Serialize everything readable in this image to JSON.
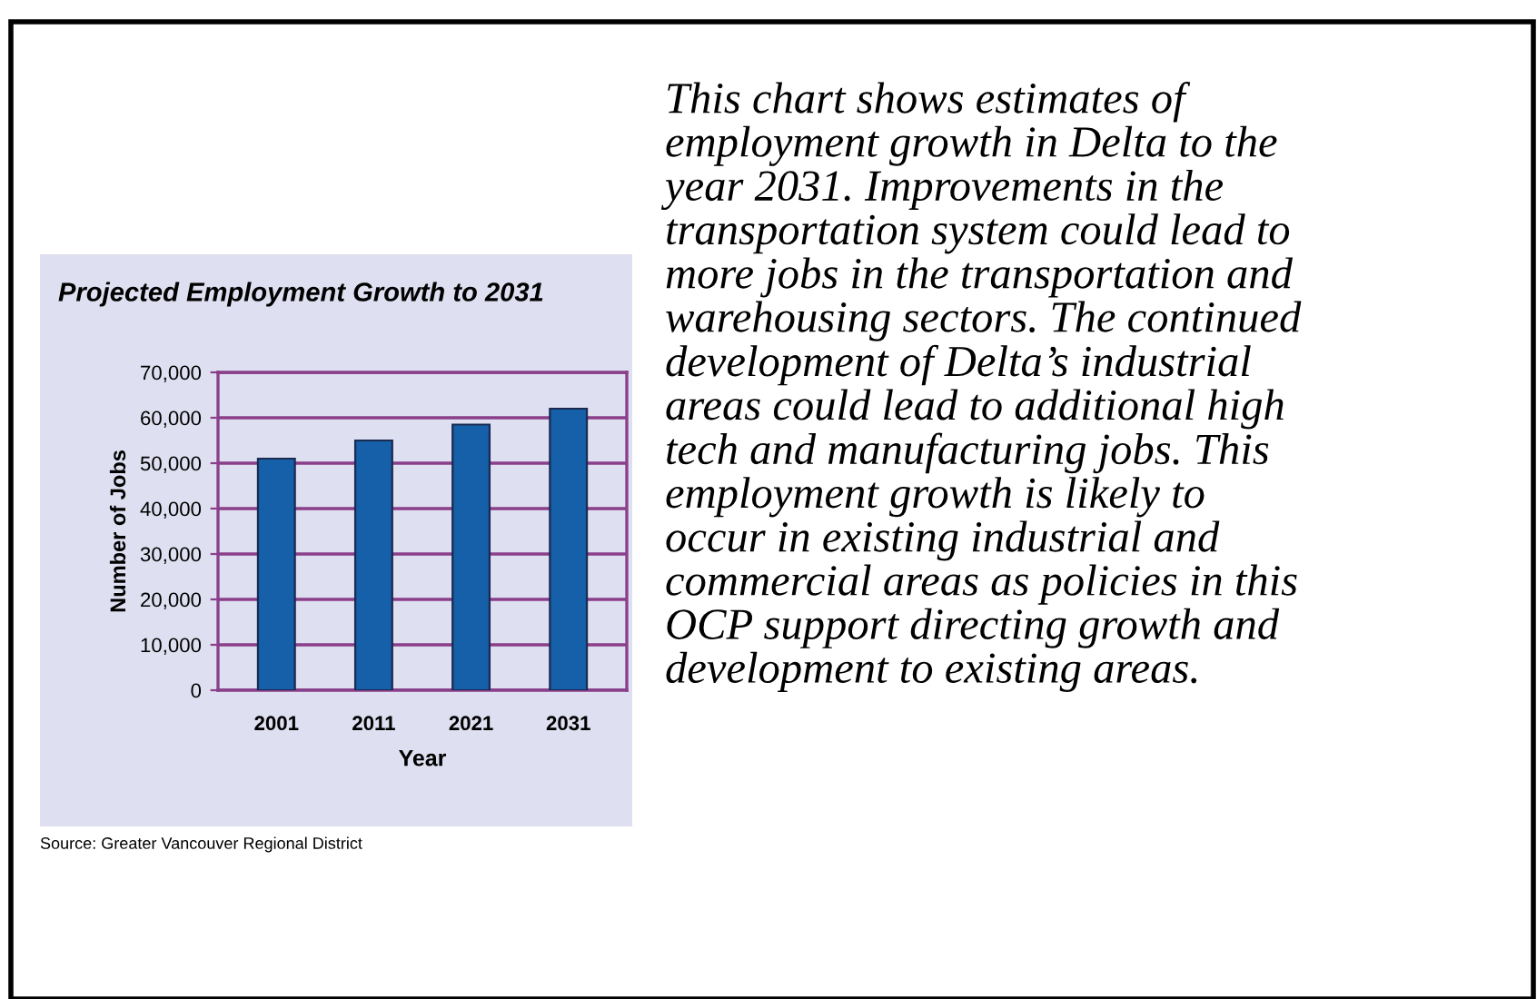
{
  "chart_data": {
    "type": "bar",
    "title": "Projected Employment Growth to 2031",
    "xlabel": "Year",
    "ylabel": "Number of Jobs",
    "categories": [
      "2001",
      "2011",
      "2021",
      "2031"
    ],
    "values": [
      51000,
      55000,
      58500,
      62000
    ],
    "color": "#1560a8",
    "ylim": [
      0,
      70000
    ],
    "yticks": [
      {
        "value": 0,
        "label": "0"
      },
      {
        "value": 10000,
        "label": "10,000"
      },
      {
        "value": 20000,
        "label": "20,000"
      },
      {
        "value": 30000,
        "label": "30,000"
      },
      {
        "value": 40000,
        "label": "40,000"
      },
      {
        "value": 50000,
        "label": "50,000"
      },
      {
        "value": 60000,
        "label": "60,000"
      },
      {
        "value": 70000,
        "label": "70,000"
      }
    ],
    "grid": "y",
    "annotations": [
      "Source: Greater Vancouver Regional District",
      "This chart shows estimates of\nemployment growth in Delta to the\nyear 2031. Improvements in the\ntransportation system could lead to\nmore jobs in the transportation and\nwarehousing sectors. The continued\ndevelopment of Delta’s industrial\nareas could lead to additional high\ntech and manufacturing jobs. This\nemployment growth is likely to\noccur in existing industrial and\ncommercial areas as policies in this\nOCP support directing growth and\ndevelopment to existing areas."
    ]
  }
}
